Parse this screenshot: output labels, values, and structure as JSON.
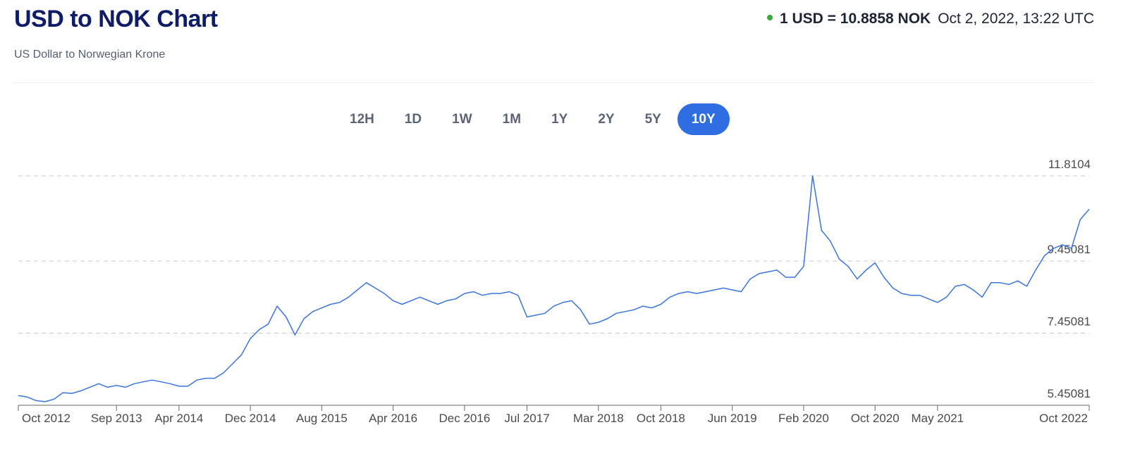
{
  "header": {
    "title": "USD to NOK Chart",
    "subtitle": "US Dollar to Norwegian Krone",
    "rate": "1 USD = 10.8858 NOK",
    "time": "Oct 2, 2022, 13:22 UTC"
  },
  "tabs": [
    "12H",
    "1D",
    "1W",
    "1M",
    "1Y",
    "2Y",
    "5Y",
    "10Y"
  ],
  "chart_data": {
    "type": "line",
    "color": "#3a74e0",
    "grid": true,
    "ylim": [
      5.45081,
      11.8104
    ],
    "yticks": [
      5.45081,
      7.45081,
      9.45081,
      11.8104
    ],
    "categories": [
      "Oct 2012",
      null,
      null,
      null,
      null,
      null,
      null,
      null,
      null,
      null,
      null,
      "Sep 2013",
      null,
      null,
      null,
      null,
      null,
      null,
      "Apr 2014",
      null,
      null,
      null,
      null,
      null,
      null,
      null,
      "Dec 2014",
      null,
      null,
      null,
      null,
      null,
      null,
      null,
      "Aug 2015",
      null,
      null,
      null,
      null,
      null,
      null,
      null,
      "Apr 2016",
      null,
      null,
      null,
      null,
      null,
      null,
      null,
      "Dec 2016",
      null,
      null,
      null,
      null,
      null,
      null,
      "Jul 2017",
      null,
      null,
      null,
      null,
      null,
      null,
      null,
      "Mar 2018",
      null,
      null,
      null,
      null,
      null,
      null,
      "Oct 2018",
      null,
      null,
      null,
      null,
      null,
      null,
      null,
      "Jun 2019",
      null,
      null,
      null,
      null,
      null,
      null,
      null,
      "Feb 2020",
      null,
      null,
      null,
      null,
      null,
      null,
      null,
      "Oct 2020",
      null,
      null,
      null,
      null,
      null,
      null,
      "May 2021",
      null,
      null,
      null,
      null,
      null,
      null,
      null,
      null,
      null,
      null,
      null,
      null,
      null,
      null,
      null,
      null,
      "Oct 2022"
    ],
    "values": [
      5.72,
      5.68,
      5.58,
      5.55,
      5.62,
      5.8,
      5.78,
      5.85,
      5.95,
      6.05,
      5.95,
      6.0,
      5.95,
      6.05,
      6.1,
      6.15,
      6.1,
      6.05,
      5.98,
      5.98,
      6.15,
      6.2,
      6.2,
      6.35,
      6.6,
      6.85,
      7.3,
      7.55,
      7.7,
      8.2,
      7.9,
      7.4,
      7.85,
      8.05,
      8.15,
      8.25,
      8.3,
      8.45,
      8.65,
      8.85,
      8.7,
      8.55,
      8.35,
      8.25,
      8.35,
      8.45,
      8.35,
      8.25,
      8.35,
      8.4,
      8.55,
      8.6,
      8.5,
      8.55,
      8.55,
      8.6,
      8.5,
      7.9,
      7.95,
      8.0,
      8.2,
      8.3,
      8.35,
      8.1,
      7.7,
      7.75,
      7.85,
      8.0,
      8.05,
      8.1,
      8.2,
      8.15,
      8.25,
      8.45,
      8.55,
      8.6,
      8.55,
      8.6,
      8.65,
      8.7,
      8.65,
      8.6,
      8.95,
      9.1,
      9.15,
      9.2,
      9.0,
      9.0,
      9.3,
      11.81,
      10.3,
      10.0,
      9.5,
      9.3,
      8.95,
      9.2,
      9.4,
      9.0,
      8.7,
      8.55,
      8.5,
      8.5,
      8.4,
      8.3,
      8.45,
      8.75,
      8.8,
      8.65,
      8.45,
      8.85,
      8.85,
      8.8,
      8.9,
      8.75,
      9.2,
      9.6,
      9.8,
      9.9,
      9.8,
      10.6,
      10.89
    ]
  }
}
